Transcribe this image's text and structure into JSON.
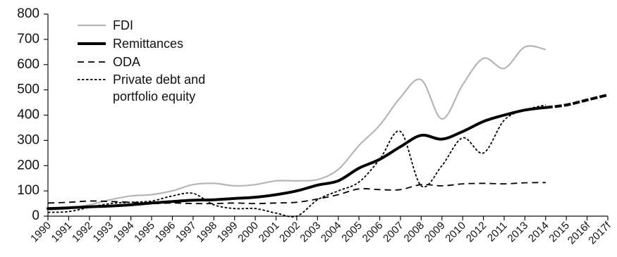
{
  "chart_data": {
    "type": "line",
    "title": "",
    "xlabel": "",
    "ylabel": "",
    "ylim": [
      0,
      800
    ],
    "y_ticks": [
      0,
      100,
      200,
      300,
      400,
      500,
      600,
      700,
      800
    ],
    "categories": [
      "1990",
      "1991",
      "1992",
      "1993",
      "1994",
      "1995",
      "1996",
      "1997",
      "1998",
      "1999",
      "2000",
      "2001",
      "2002",
      "2003",
      "2004",
      "2005",
      "2006",
      "2007",
      "2008",
      "2009",
      "2010",
      "2012",
      "2011",
      "2013",
      "2014",
      "2015",
      "2016f",
      "2017f"
    ],
    "grid": false,
    "legend_position": "top-left",
    "series": [
      {
        "name": "FDI",
        "color": "#b5b5b5",
        "style": "solid-thin",
        "values": [
          25,
          30,
          45,
          65,
          80,
          85,
          100,
          125,
          130,
          120,
          125,
          140,
          140,
          145,
          185,
          280,
          360,
          470,
          540,
          385,
          520,
          625,
          585,
          670,
          660,
          null,
          null,
          null
        ]
      },
      {
        "name": "Remittances",
        "color": "#000000",
        "style": "solid-thick",
        "values": [
          30,
          33,
          37,
          40,
          45,
          52,
          58,
          63,
          65,
          70,
          75,
          85,
          100,
          123,
          140,
          190,
          225,
          275,
          320,
          305,
          335,
          375,
          400,
          420,
          430,
          440,
          460,
          480
        ]
      },
      {
        "name": "ODA",
        "color": "#000000",
        "style": "dashed",
        "values": [
          52,
          55,
          60,
          58,
          55,
          50,
          52,
          50,
          50,
          52,
          50,
          52,
          55,
          68,
          85,
          108,
          105,
          105,
          125,
          120,
          128,
          130,
          128,
          132,
          133,
          null,
          null,
          null
        ]
      },
      {
        "name": "Private debt and portfolio equity",
        "color": "#000000",
        "style": "dotted",
        "values": [
          15,
          18,
          35,
          50,
          55,
          60,
          80,
          90,
          45,
          30,
          30,
          12,
          0,
          65,
          100,
          135,
          225,
          335,
          120,
          200,
          310,
          250,
          380,
          420,
          440,
          null,
          null,
          null
        ]
      }
    ]
  }
}
